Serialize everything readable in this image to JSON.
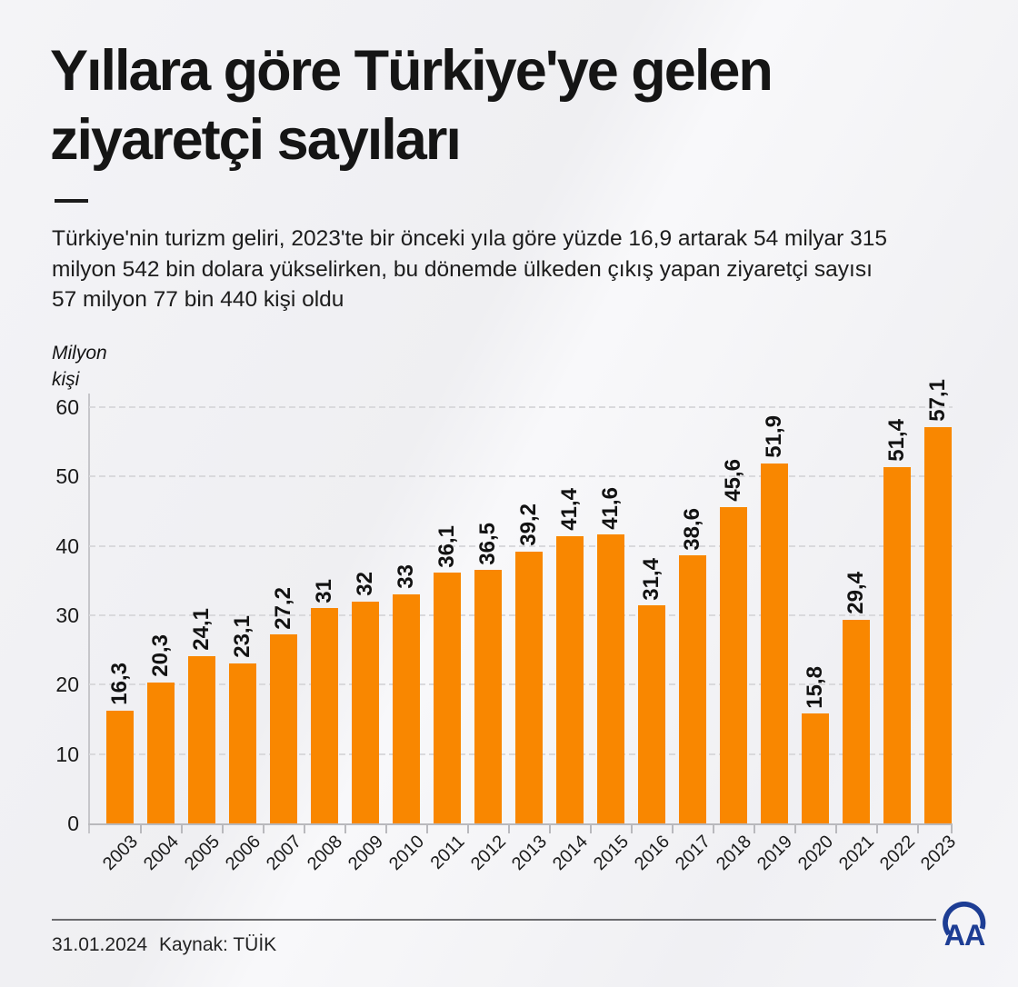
{
  "header": {
    "title": "Yıllara göre Türkiye'ye gelen ziyaretçi sayıları",
    "title_lines": [
      "Yıllara göre Türkiye'ye gelen",
      "ziyaretçi sayıları"
    ],
    "subtitle": "Türkiye'nin turizm geliri, 2023'te bir önceki yıla göre yüzde 16,9 artarak 54 milyar 315 milyon 542 bin dolara yükselirken, bu dönemde ülkeden çıkış yapan ziyaretçi sayısı 57 milyon 77 bin 440 kişi oldu",
    "subtitle_lines": [
      "Türkiye'nin turizm geliri, 2023'te bir önceki yıla göre yüzde 16,9 artarak 54 milyar 315",
      "milyon 542 bin dolara yükselirken, bu dönemde ülkeden çıkış yapan ziyaretçi sayısı",
      "57 milyon 77 bin 440 kişi oldu"
    ]
  },
  "footer": {
    "date": "31.01.2024",
    "source": "Kaynak: TÜİK"
  },
  "logo": {
    "text": "AA",
    "color": "#1d3d94"
  },
  "colors": {
    "bar": "#f98700",
    "grid": "#d9d9dc",
    "axis": "#b9b9bd",
    "logo_blue": "#1d3d94",
    "text": "#1a1a1a"
  },
  "chart_data": {
    "type": "bar",
    "title": "Yıllara göre Türkiye'ye gelen ziyaretçi sayıları",
    "unit_label": "Milyon kişi",
    "unit_label_lines": [
      "Milyon",
      "kişi"
    ],
    "xlabel": "",
    "ylabel": "Milyon kişi",
    "categories": [
      "2003",
      "2004",
      "2005",
      "2006",
      "2007",
      "2008",
      "2009",
      "2010",
      "2011",
      "2012",
      "2013",
      "2014",
      "2015",
      "2016",
      "2017",
      "2018",
      "2019",
      "2020",
      "2021",
      "2022",
      "2023"
    ],
    "values": [
      16.3,
      20.3,
      24.1,
      23.1,
      27.2,
      31,
      32,
      33,
      36.1,
      36.5,
      39.2,
      41.4,
      41.6,
      31.4,
      38.6,
      45.6,
      51.9,
      15.8,
      29.4,
      51.4,
      57.1
    ],
    "value_labels": [
      "16,3",
      "20,3",
      "24,1",
      "23,1",
      "27,2",
      "31",
      "32",
      "33",
      "36,1",
      "36,5",
      "39,2",
      "41,4",
      "41,6",
      "31,4",
      "38,6",
      "45,6",
      "51,9",
      "15,8",
      "29,4",
      "51,4",
      "57,1"
    ],
    "yticks": [
      0,
      10,
      20,
      30,
      40,
      50,
      60
    ],
    "ylim": [
      0,
      60
    ],
    "grid": "horizontal-dashed",
    "legend": "none",
    "bar_color": "#f98700",
    "value_label_rotation": -90,
    "category_label_rotation": -45
  }
}
